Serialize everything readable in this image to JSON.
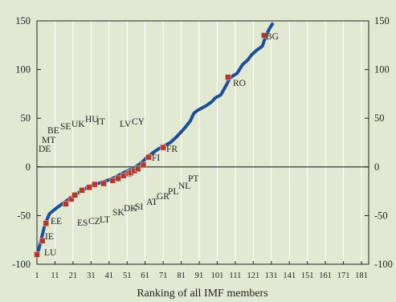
{
  "chart_data": {
    "type": "line",
    "xlabel": "Ranking of all IMF members",
    "ylabel": "",
    "xlim": [
      1,
      185
    ],
    "ylim": [
      -100,
      150
    ],
    "x_ticks": [
      1,
      11,
      21,
      31,
      41,
      51,
      61,
      71,
      81,
      91,
      101,
      111,
      121,
      131,
      141,
      151,
      161,
      171,
      181
    ],
    "y_ticks": [
      -100,
      -50,
      0,
      50,
      100,
      150
    ],
    "grid": "vertical",
    "colors": {
      "line": "#1b4f9c",
      "marker": "#b5382c",
      "background": "#e1e9d2",
      "grid": "#ffffff"
    },
    "series": [
      {
        "style": "line",
        "x": [
          1,
          2,
          3,
          4,
          5,
          6,
          7,
          8,
          10,
          12,
          15,
          18,
          22,
          26,
          30,
          35,
          40,
          45,
          50,
          55,
          58,
          60,
          62,
          65,
          68,
          72,
          75,
          78,
          80,
          83,
          86,
          88,
          90,
          92,
          95,
          98,
          100,
          103,
          106,
          108,
          110,
          112,
          115,
          118,
          120,
          123,
          126,
          128,
          130,
          132
        ],
        "y": [
          -90,
          -85,
          -77,
          -70,
          -62,
          -57,
          -52,
          -48,
          -45,
          -42,
          -38,
          -34,
          -29,
          -24,
          -20,
          -17,
          -14,
          -10,
          -5,
          -1,
          3,
          6,
          10,
          14,
          18,
          22,
          25,
          30,
          34,
          40,
          47,
          55,
          58,
          60,
          63,
          67,
          71,
          74,
          84,
          91,
          94,
          96,
          105,
          110,
          115,
          120,
          124,
          135,
          142,
          148
        ]
      },
      {
        "style": "markers",
        "x": [
          1,
          4,
          6,
          17,
          20,
          22,
          26,
          30,
          33,
          38,
          43,
          46,
          49,
          52,
          53,
          55,
          57,
          60,
          63,
          71,
          107,
          127
        ],
        "y": [
          -90,
          -76,
          -58,
          -38,
          -33,
          -29,
          -24,
          -21,
          -18,
          -17,
          -14,
          -12,
          -9,
          -7,
          -6,
          -4,
          -2,
          2,
          10,
          20,
          92,
          135
        ]
      }
    ],
    "annotations": [
      "LU",
      "IE",
      "EE",
      "ES",
      "CZ",
      "LT",
      "SK",
      "DK",
      "SI",
      "AT",
      "GR",
      "PL",
      "NL",
      "PT",
      "DE",
      "MT",
      "BE",
      "SE",
      "UK",
      "HU",
      "IT",
      "LV",
      "CY",
      "FI",
      "FR",
      "RO",
      "BG"
    ]
  }
}
